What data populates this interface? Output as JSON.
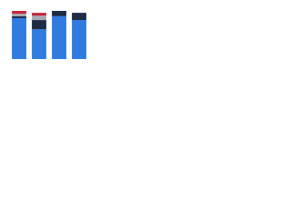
{
  "chart_data": {
    "type": "bar",
    "stacked": true,
    "categories": [
      null,
      null,
      null,
      null
    ],
    "series": [
      {
        "color": "#2f7be0",
        "values": [
          85,
          62,
          89,
          81
        ]
      },
      {
        "color": "#1d2b45",
        "values": [
          4,
          19,
          11,
          15
        ]
      },
      {
        "color": "#a7abb2",
        "values": [
          5,
          9,
          0,
          0
        ]
      },
      {
        "color": "#c4283c",
        "values": [
          6,
          6,
          0,
          0
        ]
      }
    ],
    "ylim": [
      0,
      100
    ]
  }
}
